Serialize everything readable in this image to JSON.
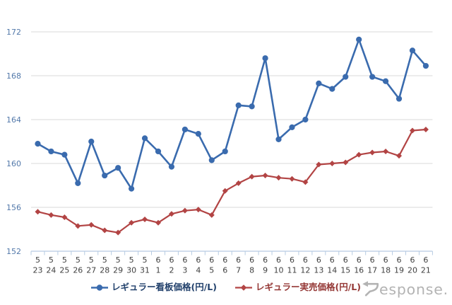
{
  "chart_data": {
    "type": "line",
    "title": "",
    "xlabel": "",
    "ylabel": "",
    "unit": "円/L",
    "ylim": [
      152,
      172
    ],
    "yticks": [
      152,
      156,
      160,
      164,
      168,
      172
    ],
    "grid": true,
    "legend_position": "bottom",
    "categories": [
      "5/23",
      "5/24",
      "5/25",
      "5/26",
      "5/27",
      "5/28",
      "5/29",
      "5/30",
      "5/31",
      "6/1",
      "6/2",
      "6/3",
      "6/4",
      "6/5",
      "6/6",
      "6/7",
      "6/8",
      "6/9",
      "6/10",
      "6/11",
      "6/12",
      "6/13",
      "6/14",
      "6/15",
      "6/16",
      "6/17",
      "6/18",
      "6/19",
      "6/20",
      "6/21"
    ],
    "x_tick_months": [
      "5",
      "5",
      "5",
      "5",
      "5",
      "5",
      "5",
      "5",
      "5",
      "6",
      "6",
      "6",
      "6",
      "6",
      "6",
      "6",
      "6",
      "6",
      "6",
      "6",
      "6",
      "6",
      "6",
      "6",
      "6",
      "6",
      "6",
      "6",
      "6",
      "6"
    ],
    "x_tick_days": [
      "23",
      "24",
      "25",
      "26",
      "27",
      "28",
      "29",
      "30",
      "31",
      "1",
      "2",
      "3",
      "4",
      "5",
      "6",
      "7",
      "8",
      "9",
      "10",
      "11",
      "12",
      "13",
      "14",
      "15",
      "16",
      "17",
      "18",
      "19",
      "20",
      "21"
    ],
    "series": [
      {
        "name": "レギュラー看板価格(円/L)",
        "marker": "circle",
        "color": "#3a6bae",
        "values": [
          161.8,
          161.1,
          160.8,
          158.2,
          162.0,
          158.9,
          159.6,
          157.7,
          162.3,
          161.1,
          159.7,
          163.1,
          162.7,
          160.3,
          161.1,
          165.3,
          165.2,
          169.6,
          162.2,
          163.3,
          164.0,
          167.3,
          166.8,
          167.9,
          171.3,
          167.9,
          167.5,
          165.9,
          170.3,
          168.9
        ]
      },
      {
        "name": "レギュラー実売価格(円/L)",
        "marker": "diamond",
        "color": "#b24444",
        "values": [
          155.6,
          155.3,
          155.1,
          154.3,
          154.4,
          153.9,
          153.7,
          154.6,
          154.9,
          154.6,
          155.4,
          155.7,
          155.8,
          155.3,
          157.5,
          158.2,
          158.8,
          158.9,
          158.7,
          158.6,
          158.3,
          159.9,
          160.0,
          160.1,
          160.8,
          161.0,
          161.1,
          160.7,
          163.0,
          163.1
        ]
      }
    ]
  },
  "colors": {
    "background": "#ffffff",
    "gridline": "#d9d9d9",
    "axis": "#b6cbe2",
    "y_tick_label": "#5379aa",
    "x_tick_label": "#404040",
    "series1": "#3a6bae",
    "series2": "#b24444",
    "legend1_text": "#21406b",
    "legend2_text": "#943735",
    "logo": "#b3b3b3"
  },
  "logo": {
    "full_text": "Response.",
    "text_after_mark": "esponse."
  }
}
